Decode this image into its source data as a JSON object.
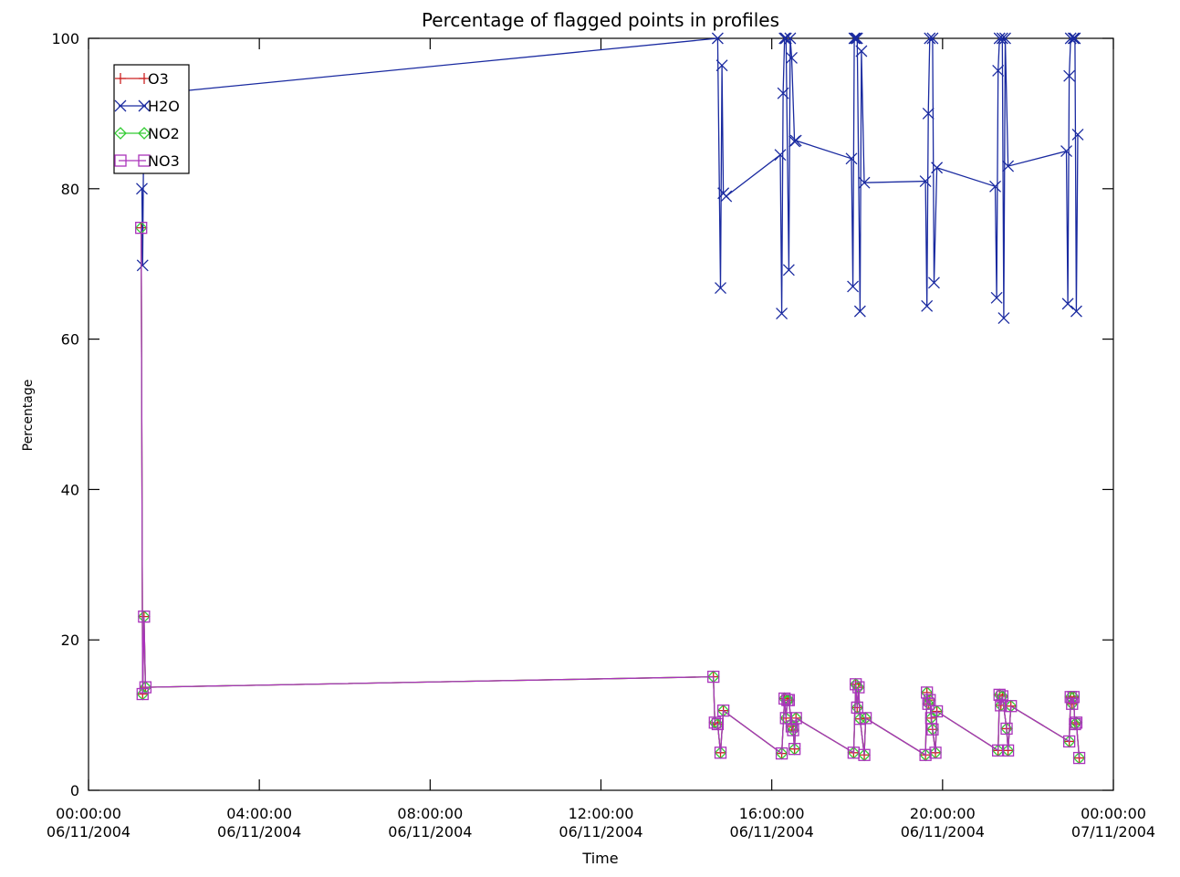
{
  "chart_data": {
    "type": "line",
    "title": "Percentage of flagged points in profiles",
    "xlabel": "Time",
    "ylabel": "Percentage",
    "xlim": [
      "06/11/2004 00:00",
      "07/11/2004 00:00"
    ],
    "ylim": [
      0,
      100
    ],
    "grid": false,
    "legend_position": "top-left",
    "x_ticks": [
      {
        "time": "00:00:00",
        "date": "06/11/2004"
      },
      {
        "time": "04:00:00",
        "date": "06/11/2004"
      },
      {
        "time": "08:00:00",
        "date": "06/11/2004"
      },
      {
        "time": "12:00:00",
        "date": "06/11/2004"
      },
      {
        "time": "16:00:00",
        "date": "06/11/2004"
      },
      {
        "time": "20:00:00",
        "date": "06/11/2004"
      },
      {
        "time": "00:00:00",
        "date": "07/11/2004"
      }
    ],
    "y_ticks": [
      "0",
      "20",
      "40",
      "60",
      "80",
      "100"
    ],
    "series": [
      {
        "name": "O3",
        "color": "#cc2222",
        "marker": "plus",
        "x": [
          "06/11/2004 01:14",
          "06/11/2004 01:16",
          "06/11/2004 01:18",
          "06/11/2004 01:20",
          "06/11/2004 14:38",
          "06/11/2004 14:40",
          "06/11/2004 14:44",
          "06/11/2004 14:48",
          "06/11/2004 14:52",
          "06/11/2004 16:14",
          "06/11/2004 16:18",
          "06/11/2004 16:20",
          "06/11/2004 16:22",
          "06/11/2004 16:24",
          "06/11/2004 16:28",
          "06/11/2004 16:30",
          "06/11/2004 16:32",
          "06/11/2004 16:34",
          "06/11/2004 17:55",
          "06/11/2004 17:58",
          "06/11/2004 18:00",
          "06/11/2004 18:02",
          "06/11/2004 18:04",
          "06/11/2004 18:10",
          "06/11/2004 18:12",
          "06/11/2004 19:36",
          "06/11/2004 19:38",
          "06/11/2004 19:40",
          "06/11/2004 19:42",
          "06/11/2004 19:44",
          "06/11/2004 19:46",
          "06/11/2004 19:50",
          "06/11/2004 19:52",
          "06/11/2004 21:18",
          "06/11/2004 21:20",
          "06/11/2004 21:22",
          "06/11/2004 21:24",
          "06/11/2004 21:30",
          "06/11/2004 21:32",
          "06/11/2004 21:36",
          "06/11/2004 22:58",
          "06/11/2004 23:00",
          "06/11/2004 23:02",
          "06/11/2004 23:04",
          "06/11/2004 23:06",
          "06/11/2004 23:08",
          "06/11/2004 23:12"
        ],
        "y": [
          74.8,
          12.8,
          23.1,
          13.7,
          15.1,
          9.0,
          8.8,
          5.0,
          10.6,
          4.9,
          12.2,
          9.6,
          12.0,
          12.0,
          8.5,
          8.0,
          5.5,
          9.6,
          5.0,
          14.1,
          11.0,
          13.7,
          9.5,
          4.7,
          9.6,
          4.7,
          13.0,
          11.5,
          12.0,
          9.6,
          8.1,
          5.0,
          10.5,
          5.3,
          12.7,
          11.3,
          12.5,
          8.2,
          5.3,
          11.2,
          6.5,
          12.4,
          11.5,
          12.4,
          8.8,
          9.0,
          4.3
        ]
      },
      {
        "name": "H2O",
        "color": "#1a2aa0",
        "marker": "x",
        "x": [
          "06/11/2004 01:15",
          "06/11/2004 01:16",
          "06/11/2004 01:18",
          "06/11/2004 14:44",
          "06/11/2004 14:48",
          "06/11/2004 14:50",
          "06/11/2004 14:52",
          "06/11/2004 14:56",
          "06/11/2004 16:12",
          "06/11/2004 16:14",
          "06/11/2004 16:16",
          "06/11/2004 16:18",
          "06/11/2004 16:20",
          "06/11/2004 16:24",
          "06/11/2004 16:26",
          "06/11/2004 16:28",
          "06/11/2004 16:32",
          "06/11/2004 16:34",
          "06/11/2004 17:52",
          "06/11/2004 17:54",
          "06/11/2004 17:56",
          "06/11/2004 17:58",
          "06/11/2004 18:00",
          "06/11/2004 18:04",
          "06/11/2004 18:06",
          "06/11/2004 18:10",
          "06/11/2004 19:36",
          "06/11/2004 19:38",
          "06/11/2004 19:40",
          "06/11/2004 19:42",
          "06/11/2004 19:46",
          "06/11/2004 19:48",
          "06/11/2004 19:52",
          "06/11/2004 21:14",
          "06/11/2004 21:16",
          "06/11/2004 21:18",
          "06/11/2004 21:20",
          "06/11/2004 21:24",
          "06/11/2004 21:26",
          "06/11/2004 21:28",
          "06/11/2004 21:32",
          "06/11/2004 22:54",
          "06/11/2004 22:56",
          "06/11/2004 22:58",
          "06/11/2004 23:00",
          "06/11/2004 23:04",
          "06/11/2004 23:06",
          "06/11/2004 23:08",
          "06/11/2004 23:10"
        ],
        "y": [
          80.0,
          69.8,
          92.5,
          100.0,
          66.8,
          96.4,
          79.4,
          79.0,
          84.5,
          63.4,
          92.7,
          100.0,
          100.0,
          69.2,
          100.0,
          97.4,
          86.3,
          86.4,
          84.0,
          67.0,
          100.0,
          100.0,
          100.0,
          63.7,
          98.3,
          80.8,
          81.0,
          64.4,
          90.0,
          100.0,
          100.0,
          67.5,
          82.8,
          80.3,
          65.5,
          95.7,
          100.0,
          100.0,
          62.8,
          100.0,
          83.0,
          85.0,
          64.7,
          95.0,
          100.0,
          100.0,
          100.0,
          63.7,
          87.2
        ]
      },
      {
        "name": "NO2",
        "color": "#33cc33",
        "marker": "diamond",
        "x": [
          "06/11/2004 01:14",
          "06/11/2004 01:16",
          "06/11/2004 01:18",
          "06/11/2004 01:20",
          "06/11/2004 14:38",
          "06/11/2004 14:40",
          "06/11/2004 14:44",
          "06/11/2004 14:48",
          "06/11/2004 14:52",
          "06/11/2004 16:14",
          "06/11/2004 16:18",
          "06/11/2004 16:20",
          "06/11/2004 16:22",
          "06/11/2004 16:24",
          "06/11/2004 16:28",
          "06/11/2004 16:30",
          "06/11/2004 16:32",
          "06/11/2004 16:34",
          "06/11/2004 17:55",
          "06/11/2004 17:58",
          "06/11/2004 18:00",
          "06/11/2004 18:02",
          "06/11/2004 18:04",
          "06/11/2004 18:10",
          "06/11/2004 18:12",
          "06/11/2004 19:36",
          "06/11/2004 19:38",
          "06/11/2004 19:40",
          "06/11/2004 19:42",
          "06/11/2004 19:44",
          "06/11/2004 19:46",
          "06/11/2004 19:50",
          "06/11/2004 19:52",
          "06/11/2004 21:18",
          "06/11/2004 21:20",
          "06/11/2004 21:22",
          "06/11/2004 21:24",
          "06/11/2004 21:30",
          "06/11/2004 21:32",
          "06/11/2004 21:36",
          "06/11/2004 22:58",
          "06/11/2004 23:00",
          "06/11/2004 23:02",
          "06/11/2004 23:04",
          "06/11/2004 23:06",
          "06/11/2004 23:08",
          "06/11/2004 23:12"
        ],
        "y": [
          74.8,
          12.8,
          23.1,
          13.7,
          15.1,
          9.0,
          8.8,
          5.0,
          10.6,
          4.9,
          12.2,
          9.6,
          12.0,
          12.0,
          8.5,
          8.0,
          5.5,
          9.6,
          5.0,
          14.1,
          11.0,
          13.7,
          9.5,
          4.7,
          9.6,
          4.7,
          13.0,
          11.5,
          12.0,
          9.6,
          8.1,
          5.0,
          10.5,
          5.3,
          12.7,
          11.3,
          12.5,
          8.2,
          5.3,
          11.2,
          6.5,
          12.4,
          11.5,
          12.4,
          8.8,
          9.0,
          4.3
        ]
      },
      {
        "name": "NO3",
        "color": "#aa33bb",
        "marker": "square",
        "x": [
          "06/11/2004 01:14",
          "06/11/2004 01:16",
          "06/11/2004 01:18",
          "06/11/2004 01:20",
          "06/11/2004 14:38",
          "06/11/2004 14:40",
          "06/11/2004 14:44",
          "06/11/2004 14:48",
          "06/11/2004 14:52",
          "06/11/2004 16:14",
          "06/11/2004 16:18",
          "06/11/2004 16:20",
          "06/11/2004 16:22",
          "06/11/2004 16:24",
          "06/11/2004 16:28",
          "06/11/2004 16:30",
          "06/11/2004 16:32",
          "06/11/2004 16:34",
          "06/11/2004 17:55",
          "06/11/2004 17:58",
          "06/11/2004 18:00",
          "06/11/2004 18:02",
          "06/11/2004 18:04",
          "06/11/2004 18:10",
          "06/11/2004 18:12",
          "06/11/2004 19:36",
          "06/11/2004 19:38",
          "06/11/2004 19:40",
          "06/11/2004 19:42",
          "06/11/2004 19:44",
          "06/11/2004 19:46",
          "06/11/2004 19:50",
          "06/11/2004 19:52",
          "06/11/2004 21:18",
          "06/11/2004 21:20",
          "06/11/2004 21:22",
          "06/11/2004 21:24",
          "06/11/2004 21:30",
          "06/11/2004 21:32",
          "06/11/2004 21:36",
          "06/11/2004 22:58",
          "06/11/2004 23:00",
          "06/11/2004 23:02",
          "06/11/2004 23:04",
          "06/11/2004 23:06",
          "06/11/2004 23:08",
          "06/11/2004 23:12"
        ],
        "y": [
          74.8,
          12.8,
          23.1,
          13.7,
          15.1,
          9.0,
          8.8,
          5.0,
          10.6,
          4.9,
          12.2,
          9.6,
          12.0,
          12.0,
          8.5,
          8.0,
          5.5,
          9.6,
          5.0,
          14.1,
          11.0,
          13.7,
          9.5,
          4.7,
          9.6,
          4.7,
          13.0,
          11.5,
          12.0,
          9.6,
          8.1,
          5.0,
          10.5,
          5.3,
          12.7,
          11.3,
          12.5,
          8.2,
          5.3,
          11.2,
          6.5,
          12.4,
          11.5,
          12.4,
          8.8,
          9.0,
          4.3
        ]
      }
    ]
  }
}
